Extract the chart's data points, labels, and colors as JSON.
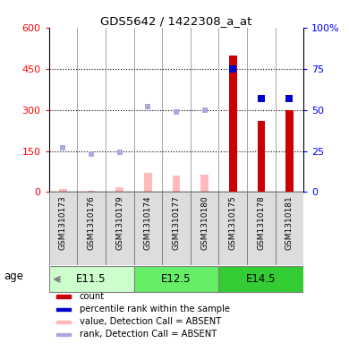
{
  "title": "GDS5642 / 1422308_a_at",
  "samples": [
    "GSM1310173",
    "GSM1310176",
    "GSM1310179",
    "GSM1310174",
    "GSM1310177",
    "GSM1310180",
    "GSM1310175",
    "GSM1310178",
    "GSM1310181"
  ],
  "age_groups": [
    {
      "label": "E11.5",
      "start": 0,
      "end": 2,
      "color": "#ccffcc"
    },
    {
      "label": "E12.5",
      "start": 3,
      "end": 5,
      "color": "#66ee66"
    },
    {
      "label": "E14.5",
      "start": 6,
      "end": 8,
      "color": "#33cc33"
    }
  ],
  "count_values": [
    0,
    0,
    0,
    0,
    0,
    0,
    500,
    260,
    300
  ],
  "count_color": "#cc0000",
  "percentile_values": [
    0,
    0,
    0,
    0,
    0,
    0,
    75,
    57,
    57
  ],
  "percentile_color": "#0000cc",
  "absent_value_values": [
    12,
    4,
    18,
    70,
    60,
    65,
    0,
    0,
    0
  ],
  "absent_value_color": "#ffbbbb",
  "absent_rank_values": [
    27,
    23,
    24,
    52,
    49,
    50,
    0,
    0,
    0
  ],
  "absent_rank_color": "#aaaadd",
  "left_ylim": [
    0,
    600
  ],
  "left_yticks": [
    0,
    150,
    300,
    450,
    600
  ],
  "right_ylim": [
    0,
    100
  ],
  "right_yticks": [
    0,
    25,
    50,
    75,
    100
  ],
  "right_yticklabels": [
    "0",
    "25",
    "50",
    "75",
    "100%"
  ],
  "bar_width": 0.5,
  "legend_items": [
    {
      "color": "#cc0000",
      "label": "count"
    },
    {
      "color": "#0000cc",
      "label": "percentile rank within the sample"
    },
    {
      "color": "#ffbbbb",
      "label": "value, Detection Call = ABSENT"
    },
    {
      "color": "#aaaadd",
      "label": "rank, Detection Call = ABSENT"
    }
  ]
}
